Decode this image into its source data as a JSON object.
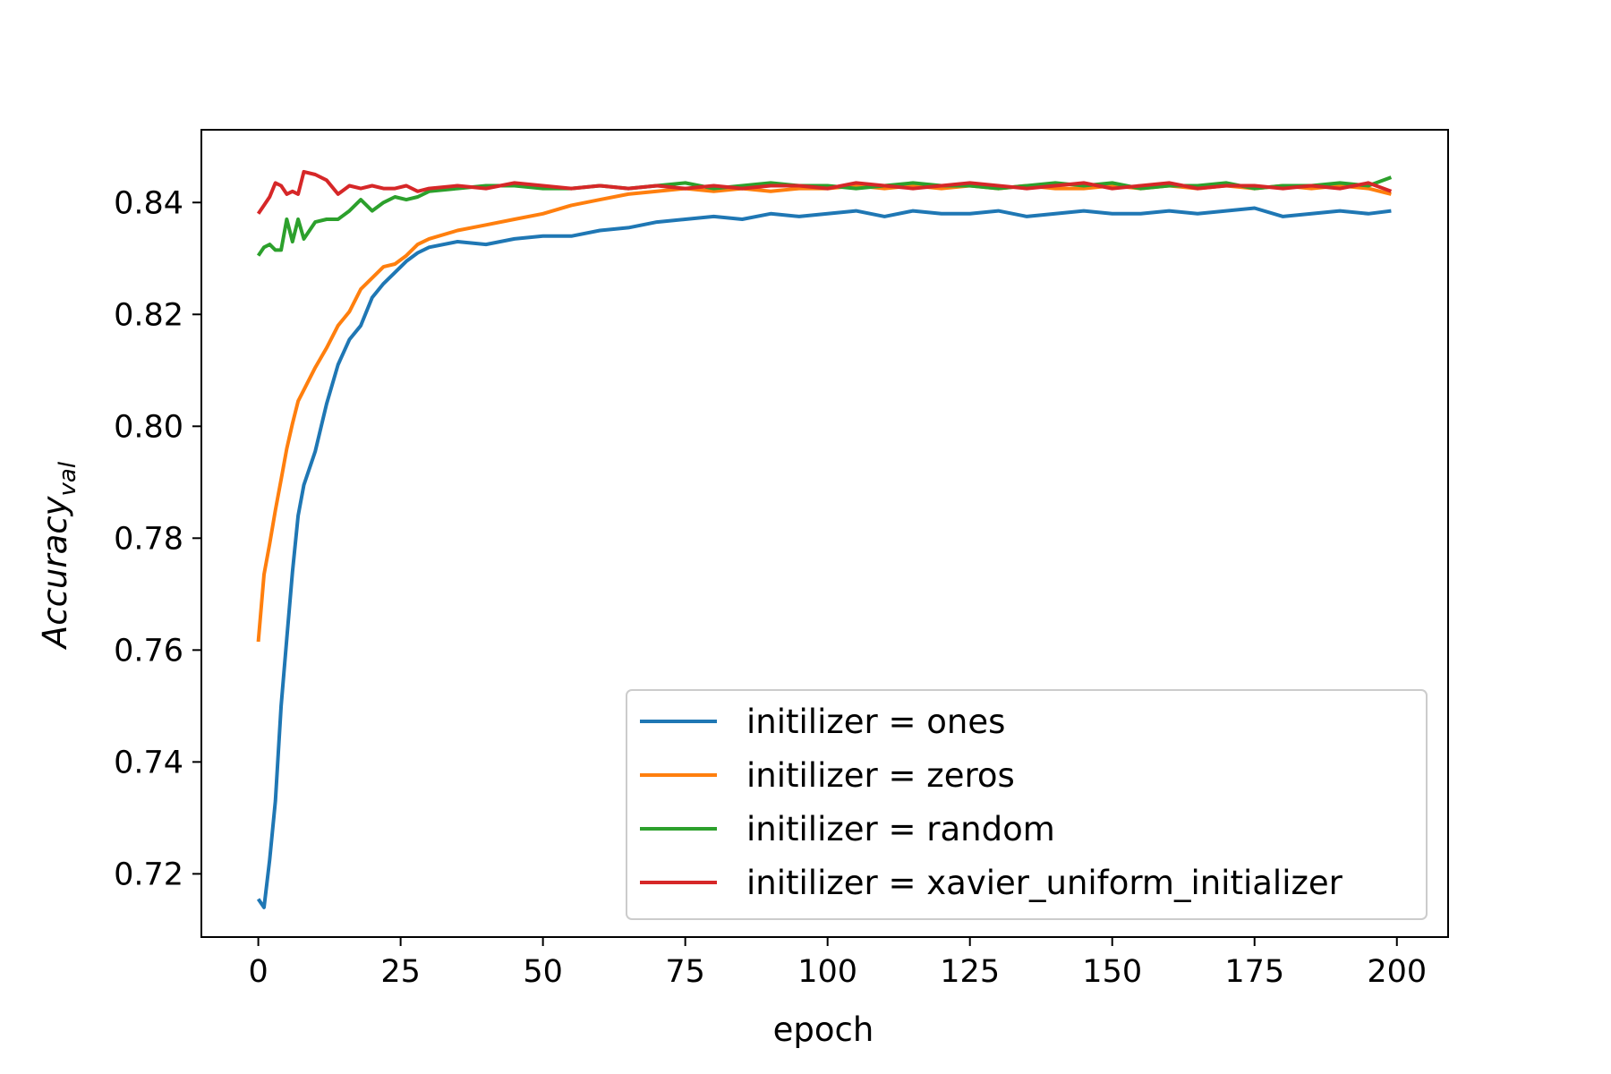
{
  "chart_data": {
    "type": "line",
    "title": "",
    "xlabel": "epoch",
    "ylabel": "Accuracy",
    "ylabel_subscript": "val",
    "xlim": [
      -10,
      209
    ],
    "ylim": [
      0.7087,
      0.853
    ],
    "xticks": [
      0,
      25,
      50,
      75,
      100,
      125,
      150,
      175,
      200
    ],
    "xtick_labels": [
      "0",
      "25",
      "50",
      "75",
      "100",
      "125",
      "150",
      "175",
      "200"
    ],
    "yticks": [
      0.72,
      0.74,
      0.76,
      0.78,
      0.8,
      0.82,
      0.84
    ],
    "ytick_labels": [
      "0.72",
      "0.74",
      "0.76",
      "0.78",
      "0.80",
      "0.82",
      "0.84"
    ],
    "grid": false,
    "legend_position": "lower-right",
    "series": [
      {
        "name": "initilizer = ones",
        "color": "#1f77b4",
        "x": [
          0,
          1,
          2,
          3,
          4,
          5,
          6,
          7,
          8,
          10,
          12,
          14,
          16,
          18,
          20,
          22,
          24,
          26,
          28,
          30,
          35,
          40,
          45,
          50,
          55,
          60,
          65,
          70,
          75,
          80,
          85,
          90,
          95,
          100,
          105,
          110,
          115,
          120,
          125,
          130,
          135,
          140,
          145,
          150,
          155,
          160,
          165,
          170,
          175,
          180,
          185,
          190,
          195,
          199
        ],
        "y": [
          0.7155,
          0.714,
          0.7225,
          0.733,
          0.75,
          0.762,
          0.774,
          0.784,
          0.7895,
          0.7955,
          0.804,
          0.811,
          0.8155,
          0.818,
          0.823,
          0.8255,
          0.8275,
          0.8295,
          0.831,
          0.832,
          0.833,
          0.8325,
          0.8335,
          0.834,
          0.834,
          0.835,
          0.8355,
          0.8365,
          0.837,
          0.8375,
          0.837,
          0.838,
          0.8375,
          0.838,
          0.8385,
          0.8375,
          0.8385,
          0.838,
          0.838,
          0.8385,
          0.8375,
          0.838,
          0.8385,
          0.838,
          0.838,
          0.8385,
          0.838,
          0.8385,
          0.839,
          0.8375,
          0.838,
          0.8385,
          0.838,
          0.8385
        ]
      },
      {
        "name": "initilizer = zeros",
        "color": "#ff7f0e",
        "x": [
          0,
          1,
          2,
          3,
          4,
          5,
          6,
          7,
          8,
          10,
          12,
          14,
          16,
          18,
          20,
          22,
          24,
          26,
          28,
          30,
          35,
          40,
          45,
          50,
          55,
          60,
          65,
          70,
          75,
          80,
          85,
          90,
          95,
          100,
          105,
          110,
          115,
          120,
          125,
          130,
          135,
          140,
          145,
          150,
          155,
          160,
          165,
          170,
          175,
          180,
          185,
          190,
          195,
          199
        ],
        "y": [
          0.7615,
          0.7735,
          0.779,
          0.785,
          0.7905,
          0.796,
          0.8005,
          0.8045,
          0.8065,
          0.8105,
          0.814,
          0.818,
          0.8205,
          0.8245,
          0.8265,
          0.8285,
          0.829,
          0.8305,
          0.8325,
          0.8335,
          0.835,
          0.836,
          0.837,
          0.838,
          0.8395,
          0.8405,
          0.8415,
          0.842,
          0.8425,
          0.842,
          0.8425,
          0.842,
          0.8425,
          0.8425,
          0.843,
          0.8425,
          0.843,
          0.8425,
          0.843,
          0.8425,
          0.843,
          0.8425,
          0.8425,
          0.843,
          0.8425,
          0.843,
          0.8425,
          0.843,
          0.8425,
          0.843,
          0.8425,
          0.843,
          0.8425,
          0.8415
        ]
      },
      {
        "name": "initilizer = random",
        "color": "#2ca02c",
        "x": [
          0,
          1,
          2,
          3,
          4,
          5,
          6,
          7,
          8,
          10,
          12,
          14,
          16,
          18,
          20,
          22,
          24,
          26,
          28,
          30,
          35,
          40,
          45,
          50,
          55,
          60,
          65,
          70,
          75,
          80,
          85,
          90,
          95,
          100,
          105,
          110,
          115,
          120,
          125,
          130,
          135,
          140,
          145,
          150,
          155,
          160,
          165,
          170,
          175,
          180,
          185,
          190,
          195,
          199
        ],
        "y": [
          0.8305,
          0.832,
          0.8325,
          0.8315,
          0.8315,
          0.837,
          0.833,
          0.837,
          0.8335,
          0.8365,
          0.837,
          0.837,
          0.8385,
          0.8405,
          0.8385,
          0.84,
          0.841,
          0.8405,
          0.841,
          0.842,
          0.8425,
          0.843,
          0.843,
          0.8425,
          0.8425,
          0.843,
          0.8425,
          0.843,
          0.8435,
          0.8425,
          0.843,
          0.8435,
          0.843,
          0.843,
          0.8425,
          0.843,
          0.8435,
          0.843,
          0.843,
          0.8425,
          0.843,
          0.8435,
          0.843,
          0.8435,
          0.8425,
          0.843,
          0.843,
          0.8435,
          0.8425,
          0.843,
          0.843,
          0.8435,
          0.843,
          0.8445
        ]
      },
      {
        "name": "initilizer = xavier_uniform_initializer",
        "color": "#d62728",
        "x": [
          0,
          1,
          2,
          3,
          4,
          5,
          6,
          7,
          8,
          10,
          12,
          14,
          16,
          18,
          20,
          22,
          24,
          26,
          28,
          30,
          35,
          40,
          45,
          50,
          55,
          60,
          65,
          70,
          75,
          80,
          85,
          90,
          95,
          100,
          105,
          110,
          115,
          120,
          125,
          130,
          135,
          140,
          145,
          150,
          155,
          160,
          165,
          170,
          175,
          180,
          185,
          190,
          195,
          199
        ],
        "y": [
          0.838,
          0.8395,
          0.841,
          0.8435,
          0.843,
          0.8415,
          0.842,
          0.8415,
          0.8455,
          0.845,
          0.844,
          0.8415,
          0.843,
          0.8425,
          0.843,
          0.8425,
          0.8425,
          0.843,
          0.842,
          0.8425,
          0.843,
          0.8425,
          0.8435,
          0.843,
          0.8425,
          0.843,
          0.8425,
          0.843,
          0.8425,
          0.843,
          0.8425,
          0.843,
          0.843,
          0.8425,
          0.8435,
          0.843,
          0.8425,
          0.843,
          0.8435,
          0.843,
          0.8425,
          0.843,
          0.8435,
          0.8425,
          0.843,
          0.8435,
          0.8425,
          0.843,
          0.843,
          0.8425,
          0.843,
          0.8425,
          0.8435,
          0.842
        ]
      }
    ]
  }
}
